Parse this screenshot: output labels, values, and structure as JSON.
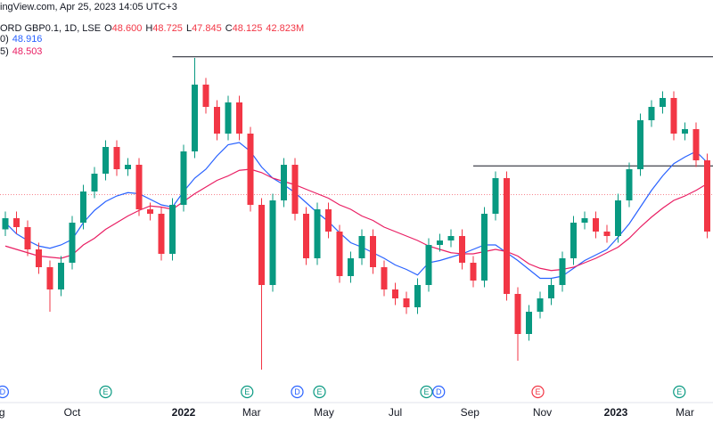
{
  "chart_data": {
    "type": "candlestick",
    "header": {
      "source": "ingView.com, Apr 25, 2023 14:05 UTC+3",
      "symbol": "ORD GBP0.1, 1D, LSE",
      "ohlc": [
        {
          "label": "O",
          "value": "48.600"
        },
        {
          "label": "H",
          "value": "48.725"
        },
        {
          "label": "L",
          "value": "47.845"
        },
        {
          "label": "C",
          "value": "48.125"
        }
      ],
      "volume": "42.823M",
      "value_color": "#f23645"
    },
    "ylim": [
      31.2,
      65.6
    ],
    "up_color": "#089981",
    "down_color": "#f23645",
    "open": [
      45.0,
      46.0,
      45.2,
      43.2,
      41.6,
      39.6,
      42.0,
      45.6,
      48.4,
      50.0,
      52.4,
      50.4,
      50.8,
      46.8,
      46.4,
      42.8,
      47.2,
      52.0,
      58.0,
      56.0,
      53.6,
      56.4,
      53.6,
      47.2,
      40.0,
      47.6,
      50.8,
      46.4,
      42.4,
      46.8,
      44.8,
      40.8,
      42.4,
      44.4,
      41.6,
      39.6,
      38.8,
      38.0,
      40.0,
      43.6,
      44.0,
      44.4,
      42.0,
      40.4,
      46.4,
      49.6,
      39.2,
      35.6,
      37.6,
      38.8,
      40.0,
      42.4,
      45.6,
      46.0,
      44.8,
      44.4,
      47.6,
      50.4,
      54.8,
      56.0,
      56.8,
      53.6,
      54.0,
      51.2
    ],
    "high": [
      46.6,
      46.6,
      45.8,
      43.8,
      42.2,
      42.6,
      46.2,
      49.0,
      50.6,
      53.0,
      53.0,
      51.4,
      51.4,
      47.4,
      47.0,
      47.8,
      52.6,
      60.4,
      58.6,
      56.6,
      57.0,
      57.0,
      54.2,
      47.8,
      48.2,
      51.4,
      51.4,
      47.0,
      47.4,
      47.4,
      45.4,
      43.0,
      45.0,
      45.0,
      42.2,
      40.2,
      39.4,
      40.6,
      44.2,
      44.6,
      45.0,
      45.0,
      42.6,
      47.0,
      50.2,
      50.2,
      39.8,
      38.2,
      39.4,
      40.6,
      43.0,
      46.2,
      46.6,
      46.6,
      45.4,
      48.2,
      51.0,
      55.4,
      56.6,
      57.4,
      57.4,
      54.6,
      54.6,
      51.8
    ],
    "low": [
      44.4,
      44.6,
      42.6,
      41.0,
      37.6,
      39.0,
      41.4,
      45.0,
      47.8,
      49.4,
      49.8,
      49.8,
      46.2,
      45.8,
      42.2,
      42.2,
      46.6,
      51.4,
      55.4,
      53.0,
      53.0,
      53.0,
      46.6,
      32.4,
      39.4,
      47.0,
      45.8,
      41.8,
      41.8,
      44.2,
      40.2,
      40.2,
      41.8,
      41.0,
      39.0,
      38.2,
      37.4,
      37.4,
      39.4,
      43.0,
      43.4,
      41.4,
      39.8,
      39.8,
      45.8,
      38.6,
      33.2,
      35.0,
      37.0,
      38.2,
      39.4,
      41.8,
      45.0,
      44.2,
      43.8,
      43.8,
      47.0,
      49.8,
      54.2,
      55.4,
      53.0,
      53.0,
      50.6,
      44.2
    ],
    "close": [
      46.0,
      45.2,
      43.2,
      41.6,
      39.6,
      42.0,
      45.6,
      48.4,
      50.0,
      52.4,
      50.4,
      50.8,
      46.8,
      46.4,
      42.8,
      47.2,
      52.0,
      58.0,
      56.0,
      53.6,
      56.4,
      53.6,
      47.2,
      40.0,
      47.6,
      50.8,
      46.4,
      42.4,
      46.8,
      44.8,
      40.8,
      42.4,
      44.4,
      41.6,
      39.6,
      38.8,
      38.0,
      40.0,
      43.6,
      44.0,
      44.4,
      42.0,
      40.4,
      46.4,
      49.6,
      39.2,
      35.6,
      37.6,
      38.8,
      40.0,
      42.4,
      45.6,
      46.0,
      44.8,
      44.4,
      47.6,
      50.4,
      54.8,
      56.0,
      56.8,
      53.6,
      54.0,
      51.2,
      44.8
    ],
    "series": [
      {
        "name": "0)",
        "last": "48.916",
        "color": "#2962ff",
        "values": [
          45.6,
          44.6,
          44.0,
          43.5,
          43.3,
          43.6,
          44.1,
          45.6,
          46.7,
          47.5,
          48.0,
          48.3,
          48.2,
          47.7,
          47.2,
          47.0,
          48.4,
          49.6,
          50.4,
          51.6,
          52.6,
          52.8,
          52.0,
          50.6,
          49.6,
          49.0,
          48.3,
          47.4,
          46.5,
          45.7,
          44.7,
          43.8,
          43.4,
          42.9,
          42.4,
          41.8,
          41.4,
          40.9,
          42.0,
          42.2,
          42.5,
          42.8,
          43.2,
          43.6,
          43.6,
          42.9,
          42.2,
          41.4,
          40.6,
          40.6,
          40.8,
          41.5,
          42.2,
          42.7,
          43.2,
          44.3,
          45.5,
          47.0,
          48.5,
          49.8,
          50.9,
          51.5,
          52.0,
          51.0
        ]
      },
      {
        "name": "5)",
        "last": "48.503",
        "color": "#e91e63",
        "values": [
          43.5,
          43.2,
          42.9,
          42.6,
          42.5,
          42.4,
          42.7,
          43.6,
          44.2,
          45.0,
          45.6,
          46.2,
          46.7,
          47.1,
          47.0,
          46.8,
          47.5,
          48.2,
          48.8,
          49.4,
          49.8,
          50.3,
          50.4,
          50.1,
          49.6,
          49.3,
          49.0,
          48.6,
          48.2,
          47.8,
          47.2,
          46.8,
          46.2,
          45.8,
          45.2,
          44.8,
          44.4,
          44.0,
          43.5,
          43.2,
          42.9,
          42.8,
          42.8,
          43.0,
          43.2,
          43.0,
          42.6,
          41.9,
          41.5,
          41.3,
          41.4,
          41.6,
          42.0,
          42.4,
          42.9,
          43.4,
          44.2,
          45.2,
          46.1,
          46.9,
          47.6,
          48.0,
          48.5,
          49.1
        ]
      }
    ],
    "hlines": [
      {
        "value": 60.5,
        "start": 15
      },
      {
        "value": 50.7,
        "start": 42
      }
    ],
    "price_line": 48.125,
    "xlabels": [
      {
        "label": "g",
        "at": -0.3
      },
      {
        "label": "Oct",
        "at": 6
      },
      {
        "label": "2022",
        "at": 16,
        "bold": true
      },
      {
        "label": "Mar",
        "at": 22.1
      },
      {
        "label": "May",
        "at": 28.6
      },
      {
        "label": "Jul",
        "at": 35
      },
      {
        "label": "Sep",
        "at": 41.7
      },
      {
        "label": "Nov",
        "at": 48.2
      },
      {
        "label": "2023",
        "at": 54.8,
        "bold": true
      },
      {
        "label": "Mar",
        "at": 61
      }
    ],
    "events": [
      {
        "label": "D",
        "at": -0.25,
        "color": "#2962ff"
      },
      {
        "label": "E",
        "at": 9,
        "color": "#089981"
      },
      {
        "label": "E",
        "at": 21.7,
        "color": "#089981"
      },
      {
        "label": "D",
        "at": 26.2,
        "color": "#2962ff"
      },
      {
        "label": "E",
        "at": 28.2,
        "color": "#089981"
      },
      {
        "label": "E",
        "at": 37.8,
        "color": "#089981"
      },
      {
        "label": "D",
        "at": 38.9,
        "color": "#2962ff"
      },
      {
        "label": "E",
        "at": 47.8,
        "color": "#f23645"
      },
      {
        "label": "E",
        "at": 60.5,
        "color": "#089981"
      }
    ]
  }
}
